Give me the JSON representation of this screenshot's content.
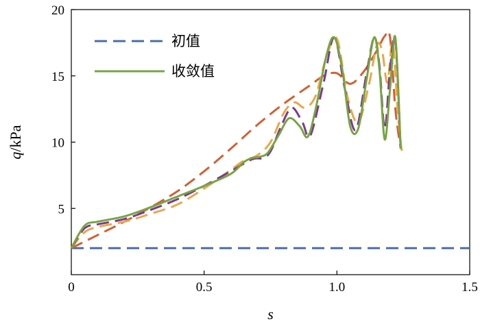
{
  "chart_data": {
    "type": "line",
    "xlabel": "s",
    "ylabel": "q/kPa",
    "ylabel_italic_part": "q",
    "ylabel_rest": "/kPa",
    "xlim": [
      0,
      1.5
    ],
    "ylim": [
      0,
      20
    ],
    "xticks": [
      0,
      0.5,
      1.0,
      1.5
    ],
    "xtick_labels": [
      "0",
      "0.5",
      "1.0",
      "1.5"
    ],
    "yticks": [
      5,
      10,
      15,
      20
    ],
    "ytick_labels": [
      "5",
      "10",
      "15",
      "20"
    ],
    "grid": false,
    "legend_position": "top-left",
    "legend": [
      {
        "label": "初值",
        "color": "#4a6ea9",
        "style": "dashed"
      },
      {
        "label": "收敛值",
        "color": "#77a443",
        "style": "solid"
      }
    ],
    "series": [
      {
        "name": "初值",
        "color": "#4a6ea9",
        "style": "dashed",
        "x": [
          0,
          1.5
        ],
        "y": [
          2,
          2
        ]
      },
      {
        "color": "#d35f32",
        "style": "dashed",
        "x": [
          0,
          0.1,
          0.2,
          0.3,
          0.4,
          0.5,
          0.6,
          0.7,
          0.8,
          0.9,
          0.95,
          1.0,
          1.05,
          1.1,
          1.15,
          1.18,
          1.2,
          1.22,
          1.24
        ],
        "y": [
          2,
          3.0,
          4.0,
          5.1,
          6.3,
          7.8,
          9.5,
          11.3,
          12.9,
          14.3,
          15.0,
          15.2,
          14.4,
          15.3,
          16.9,
          18.0,
          17.9,
          12.5,
          9.5
        ]
      },
      {
        "color": "#e9a64a",
        "style": "dashed",
        "x": [
          0,
          0.05,
          0.1,
          0.2,
          0.3,
          0.4,
          0.5,
          0.6,
          0.65,
          0.7,
          0.75,
          0.8,
          0.84,
          0.88,
          0.92,
          0.96,
          1.0,
          1.04,
          1.08,
          1.12,
          1.15,
          1.17,
          1.19,
          1.21,
          1.23,
          1.245
        ],
        "y": [
          2,
          3.2,
          3.6,
          4.0,
          4.6,
          5.3,
          6.5,
          7.9,
          8.6,
          9.0,
          10.0,
          12.2,
          13.0,
          12.6,
          13.5,
          16.4,
          17.8,
          13.4,
          11.5,
          14.3,
          17.3,
          16.9,
          14.5,
          17.5,
          12.0,
          9.2
        ]
      },
      {
        "color": "#7a3b8c",
        "style": "dashed",
        "x": [
          0,
          0.05,
          0.1,
          0.2,
          0.3,
          0.4,
          0.5,
          0.6,
          0.68,
          0.72,
          0.75,
          0.79,
          0.83,
          0.87,
          0.9,
          0.95,
          0.99,
          1.03,
          1.07,
          1.11,
          1.14,
          1.16,
          1.18,
          1.2,
          1.22,
          1.24
        ],
        "y": [
          2,
          3.5,
          3.8,
          4.2,
          4.9,
          5.7,
          6.7,
          7.8,
          8.7,
          8.8,
          9.3,
          11.2,
          12.6,
          11.5,
          10.5,
          14.5,
          17.9,
          14.0,
          10.9,
          15.0,
          17.9,
          15.8,
          11.0,
          15.5,
          17.7,
          9.5
        ]
      },
      {
        "color": "#77a443",
        "style": "solid",
        "x": [
          0,
          0.05,
          0.1,
          0.2,
          0.3,
          0.4,
          0.5,
          0.6,
          0.65,
          0.68,
          0.71,
          0.74,
          0.78,
          0.82,
          0.86,
          0.89,
          0.92,
          0.96,
          0.99,
          1.02,
          1.05,
          1.08,
          1.11,
          1.14,
          1.16,
          1.18,
          1.2,
          1.22,
          1.24
        ],
        "y": [
          2,
          3.7,
          4.0,
          4.4,
          5.1,
          5.9,
          6.7,
          7.6,
          8.5,
          8.8,
          8.9,
          9.2,
          10.5,
          11.8,
          11.2,
          10.4,
          12.5,
          16.5,
          17.9,
          15.5,
          11.2,
          11.0,
          14.5,
          17.9,
          15.5,
          10.2,
          14.0,
          17.9,
          9.5
        ]
      }
    ]
  }
}
